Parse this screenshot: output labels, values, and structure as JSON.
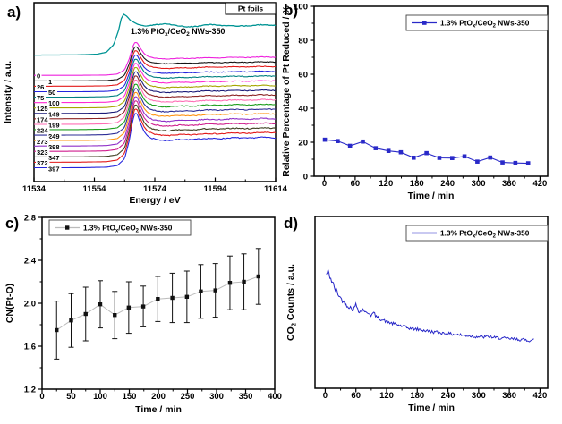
{
  "figure": {
    "background": "#ffffff",
    "accent_blue": "#2929c8",
    "accent_teal": "#009494"
  },
  "chart_data": [
    {
      "id": "a",
      "panel_label": "a)",
      "type": "line",
      "description": "Stacked in-situ XANES spectra waterfall",
      "xlabel": "Energy / eV",
      "ylabel": "Intensity / a.u.",
      "xlim": [
        11534,
        11614
      ],
      "xticks": [
        11534,
        11554,
        11574,
        11594,
        11614
      ],
      "yticks": [],
      "corner_label": "Pt foils",
      "annotation": "1.3% PtOx/CeO2 NWs-350",
      "annotation_parts": [
        [
          "1.3% PtO",
          0
        ],
        [
          "x",
          1
        ],
        [
          "/CeO",
          0
        ],
        [
          "2",
          1
        ],
        [
          " NWs-350",
          0
        ]
      ],
      "reference_curve": {
        "label": "Pt foils",
        "color": "#009494",
        "baseline": 0.3,
        "amplitude": 0.235
      },
      "curves": [
        {
          "label": "0",
          "color": "#ee22dd",
          "baseline": 0.41,
          "amplitude": 0.19
        },
        {
          "label": "1",
          "color": "#141414",
          "baseline": 0.441,
          "amplitude": 0.197
        },
        {
          "label": "26",
          "color": "#e31a1a",
          "baseline": 0.471,
          "amplitude": 0.205
        },
        {
          "label": "50",
          "color": "#2424dd",
          "baseline": 0.502,
          "amplitude": 0.212
        },
        {
          "label": "75",
          "color": "#008080",
          "baseline": 0.532,
          "amplitude": 0.219
        },
        {
          "label": "100",
          "color": "#ff2ad4",
          "baseline": 0.563,
          "amplitude": 0.227
        },
        {
          "label": "125",
          "color": "#a6a600",
          "baseline": 0.593,
          "amplitude": 0.234
        },
        {
          "label": "149",
          "color": "#1c1c78",
          "baseline": 0.624,
          "amplitude": 0.241
        },
        {
          "label": "174",
          "color": "#8c2323",
          "baseline": 0.654,
          "amplitude": 0.248
        },
        {
          "label": "199",
          "color": "#ff6eb4",
          "baseline": 0.685,
          "amplitude": 0.256
        },
        {
          "label": "224",
          "color": "#1e9e1e",
          "baseline": 0.715,
          "amplitude": 0.263
        },
        {
          "label": "249",
          "color": "#2e2e96",
          "baseline": 0.746,
          "amplitude": 0.27
        },
        {
          "label": "273",
          "color": "#ff9412",
          "baseline": 0.776,
          "amplitude": 0.278
        },
        {
          "label": "298",
          "color": "#9030c8",
          "baseline": 0.807,
          "amplitude": 0.285
        },
        {
          "label": "323",
          "color": "#cf1f8e",
          "baseline": 0.837,
          "amplitude": 0.292
        },
        {
          "label": "347",
          "color": "#3f3f22",
          "baseline": 0.868,
          "amplitude": 0.3
        },
        {
          "label": "372",
          "color": "#e31a1a",
          "baseline": 0.898,
          "amplitude": 0.307
        },
        {
          "label": "397",
          "color": "#2424dd",
          "baseline": 0.929,
          "amplitude": 0.314
        }
      ]
    },
    {
      "id": "b",
      "panel_label": "b)",
      "type": "line",
      "xlabel": "Time / min",
      "ylabel": "Relative Percentage of Pt Reduced / %",
      "xlim": [
        -20,
        435
      ],
      "ylim": [
        0,
        100
      ],
      "xticks": [
        0,
        60,
        120,
        180,
        240,
        300,
        360,
        420
      ],
      "yticks": [
        0,
        20,
        40,
        60,
        80,
        100
      ],
      "legend": {
        "label": "1.3% PtOx/CeO2 NWs-350",
        "parts": [
          [
            "1.3% PtO",
            0
          ],
          [
            "x",
            1
          ],
          [
            "/CeO",
            0
          ],
          [
            "2",
            1
          ],
          [
            " NWs-350",
            0
          ]
        ],
        "position": "top-right"
      },
      "series": {
        "name": "1.3% PtOx/CeO2 NWs-350",
        "color": "#2929c8",
        "marker": "square",
        "x": [
          1,
          26,
          50,
          75,
          100,
          125,
          149,
          174,
          199,
          224,
          249,
          273,
          298,
          323,
          347,
          372,
          397
        ],
        "y": [
          21.5,
          20.7,
          17.9,
          20.4,
          16.5,
          14.9,
          14.1,
          10.9,
          13.6,
          10.8,
          10.7,
          11.7,
          8.6,
          11.0,
          8.1,
          7.8,
          7.6
        ]
      }
    },
    {
      "id": "c",
      "panel_label": "c)",
      "type": "scatter",
      "xlabel": "Time / min",
      "ylabel": "CN(Pt-O)",
      "xlim": [
        0,
        400
      ],
      "ylim": [
        1.2,
        2.8
      ],
      "xticks": [
        0,
        50,
        100,
        150,
        200,
        250,
        300,
        350,
        400
      ],
      "yticks": [
        "1.2",
        "1.6",
        "2.0",
        "2.4",
        "2.8"
      ],
      "legend": {
        "label": "1.3% PtOx/CeO2 NWs-350",
        "parts": [
          [
            "1.3% PtO",
            0
          ],
          [
            "x",
            1
          ],
          [
            "/CeO",
            0
          ],
          [
            "2",
            1
          ],
          [
            " NWs-350",
            0
          ]
        ],
        "position": "top-left"
      },
      "series": {
        "name": "1.3% PtOx/CeO2 NWs-350",
        "marker_color": "#111111",
        "line_color": "#bbbbbb",
        "x": [
          25,
          50,
          75,
          100,
          125,
          149,
          174,
          199,
          224,
          249,
          273,
          298,
          323,
          347,
          372
        ],
        "y": [
          1.75,
          1.84,
          1.9,
          1.99,
          1.89,
          1.96,
          1.97,
          2.04,
          2.05,
          2.06,
          2.11,
          2.12,
          2.19,
          2.2,
          2.25
        ],
        "yerr": [
          0.27,
          0.25,
          0.25,
          0.22,
          0.22,
          0.24,
          0.19,
          0.21,
          0.23,
          0.24,
          0.25,
          0.25,
          0.25,
          0.26,
          0.26
        ]
      }
    },
    {
      "id": "d",
      "panel_label": "d)",
      "type": "line",
      "xlabel": "Time / min",
      "ylabel": "CO2 Counts / a.u.",
      "ylabel_parts": [
        [
          "CO",
          0
        ],
        [
          "2",
          1
        ],
        [
          " Counts / a.u.",
          0
        ]
      ],
      "xlim": [
        -20,
        435
      ],
      "ylim": [
        0,
        1
      ],
      "xticks": [
        0,
        60,
        120,
        180,
        240,
        300,
        360,
        420
      ],
      "yticks": [],
      "legend": {
        "label": "1.3% PtOx/CeO2 NWs-350",
        "parts": [
          [
            "1.3% PtO",
            0
          ],
          [
            "x",
            1
          ],
          [
            "/CeO",
            0
          ],
          [
            "2",
            1
          ],
          [
            " NWs-350",
            0
          ]
        ],
        "position": "top-right"
      },
      "series": {
        "name": "1.3% PtOx/CeO2 NWs-350",
        "color": "#2929c8",
        "x": [
          2,
          5,
          8,
          12,
          16,
          20,
          25,
          30,
          35,
          40,
          45,
          50,
          55,
          60,
          65,
          70,
          75,
          80,
          85,
          90,
          95,
          100,
          110,
          120,
          130,
          140,
          150,
          160,
          170,
          180,
          190,
          200,
          210,
          220,
          230,
          240,
          250,
          260,
          270,
          280,
          290,
          300,
          310,
          320,
          330,
          340,
          350,
          360,
          370,
          380,
          390,
          400,
          408
        ],
        "y": [
          0.66,
          0.68,
          0.66,
          0.63,
          0.6,
          0.575,
          0.55,
          0.525,
          0.505,
          0.49,
          0.478,
          0.468,
          0.458,
          0.488,
          0.455,
          0.445,
          0.462,
          0.435,
          0.44,
          0.425,
          0.44,
          0.415,
          0.4,
          0.388,
          0.378,
          0.37,
          0.362,
          0.352,
          0.347,
          0.343,
          0.338,
          0.333,
          0.328,
          0.326,
          0.322,
          0.318,
          0.314,
          0.312,
          0.308,
          0.306,
          0.302,
          0.3,
          0.298,
          0.302,
          0.294,
          0.293,
          0.29,
          0.288,
          0.286,
          0.284,
          0.281,
          0.279,
          0.282
        ]
      }
    }
  ]
}
